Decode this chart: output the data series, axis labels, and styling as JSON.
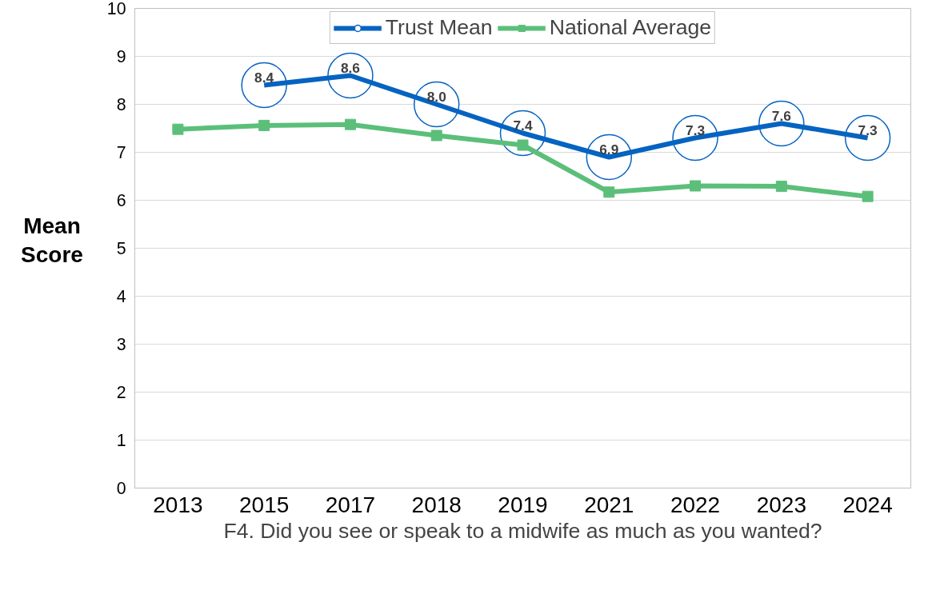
{
  "chart_data": {
    "type": "line",
    "xlabel": "F4. Did you see or speak to a midwife as much as you wanted?",
    "ylabel": "Mean\nScore",
    "categories": [
      "2013",
      "2015",
      "2017",
      "2018",
      "2019",
      "2021",
      "2022",
      "2023",
      "2024"
    ],
    "series": [
      {
        "name": "Trust Mean",
        "color": "#0563c1",
        "values": [
          null,
          8.4,
          8.6,
          8.0,
          7.4,
          6.9,
          7.3,
          7.6,
          7.3
        ],
        "value_labels": [
          null,
          "8.4",
          "8.6",
          "8.0",
          "7.4",
          "6.9",
          "7.3",
          "7.6",
          "7.3"
        ]
      },
      {
        "name": "National Average",
        "color": "#5bbf7a",
        "marker": "square",
        "values": [
          7.48,
          7.56,
          7.58,
          7.35,
          7.15,
          6.17,
          6.3,
          6.29,
          6.08
        ]
      }
    ],
    "ylim": [
      0,
      10
    ],
    "yticks": [
      0,
      1,
      2,
      3,
      4,
      5,
      6,
      7,
      8,
      9,
      10
    ],
    "grid": "y",
    "legend": "top",
    "line_style": "solid"
  }
}
